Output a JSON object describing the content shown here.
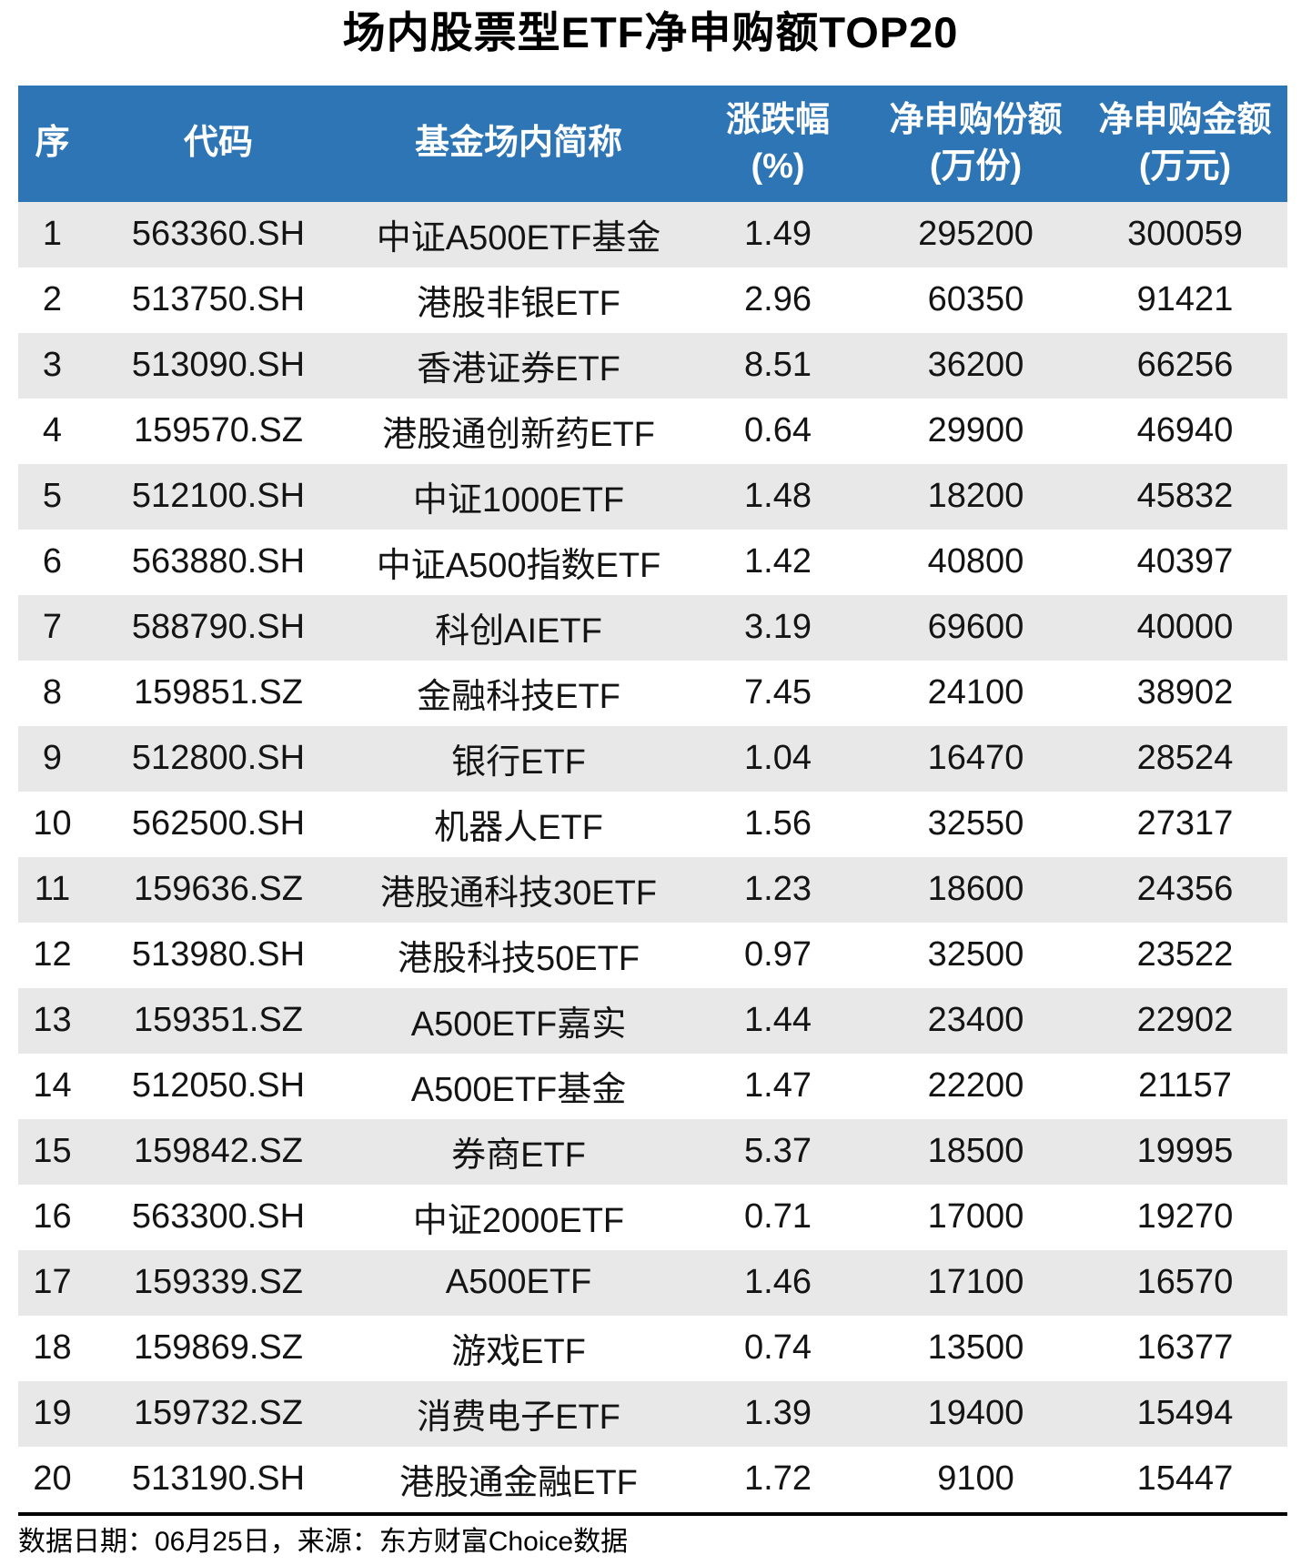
{
  "title": "场内股票型ETF净申购额TOP20",
  "chart_data": {
    "type": "table",
    "title": "场内股票型ETF净申购额TOP20",
    "columns": [
      {
        "key": "rank",
        "label": "序",
        "unit": ""
      },
      {
        "key": "code",
        "label": "代码",
        "unit": ""
      },
      {
        "key": "name",
        "label": "基金场内简称",
        "unit": ""
      },
      {
        "key": "change_pct",
        "label": "涨跌幅",
        "unit": "(%)"
      },
      {
        "key": "net_shares",
        "label": "净申购份额",
        "unit": "(万份)"
      },
      {
        "key": "net_amount",
        "label": "净申购金额",
        "unit": "(万元)"
      }
    ],
    "rows": [
      [
        "1",
        "563360.SH",
        "中证A500ETF基金",
        "1.49",
        "295200",
        "300059"
      ],
      [
        "2",
        "513750.SH",
        "港股非银ETF",
        "2.96",
        "60350",
        "91421"
      ],
      [
        "3",
        "513090.SH",
        "香港证券ETF",
        "8.51",
        "36200",
        "66256"
      ],
      [
        "4",
        "159570.SZ",
        "港股通创新药ETF",
        "0.64",
        "29900",
        "46940"
      ],
      [
        "5",
        "512100.SH",
        "中证1000ETF",
        "1.48",
        "18200",
        "45832"
      ],
      [
        "6",
        "563880.SH",
        "中证A500指数ETF",
        "1.42",
        "40800",
        "40397"
      ],
      [
        "7",
        "588790.SH",
        "科创AIETF",
        "3.19",
        "69600",
        "40000"
      ],
      [
        "8",
        "159851.SZ",
        "金融科技ETF",
        "7.45",
        "24100",
        "38902"
      ],
      [
        "9",
        "512800.SH",
        "银行ETF",
        "1.04",
        "16470",
        "28524"
      ],
      [
        "10",
        "562500.SH",
        "机器人ETF",
        "1.56",
        "32550",
        "27317"
      ],
      [
        "11",
        "159636.SZ",
        "港股通科技30ETF",
        "1.23",
        "18600",
        "24356"
      ],
      [
        "12",
        "513980.SH",
        "港股科技50ETF",
        "0.97",
        "32500",
        "23522"
      ],
      [
        "13",
        "159351.SZ",
        "A500ETF嘉实",
        "1.44",
        "23400",
        "22902"
      ],
      [
        "14",
        "512050.SH",
        "A500ETF基金",
        "1.47",
        "22200",
        "21157"
      ],
      [
        "15",
        "159842.SZ",
        "券商ETF",
        "5.37",
        "18500",
        "19995"
      ],
      [
        "16",
        "563300.SH",
        "中证2000ETF",
        "0.71",
        "17000",
        "19270"
      ],
      [
        "17",
        "159339.SZ",
        "A500ETF",
        "1.46",
        "17100",
        "16570"
      ],
      [
        "18",
        "159869.SZ",
        "游戏ETF",
        "0.74",
        "13500",
        "16377"
      ],
      [
        "19",
        "159732.SZ",
        "消费电子ETF",
        "1.39",
        "19400",
        "15494"
      ],
      [
        "20",
        "513190.SH",
        "港股通金融ETF",
        "1.72",
        "9100",
        "15447"
      ]
    ],
    "layout": {
      "striped_rows": "odd",
      "header_lines": 2,
      "grid": "off"
    }
  },
  "footer": {
    "note": "数据日期：06月25日，来源：东方财富Choice数据"
  },
  "colors": {
    "header_bg": "#2E75B6",
    "header_text": "#FFFFFF",
    "stripe_bg": "#E8E8E8",
    "body_text": "#141414",
    "divider": "#000000"
  }
}
